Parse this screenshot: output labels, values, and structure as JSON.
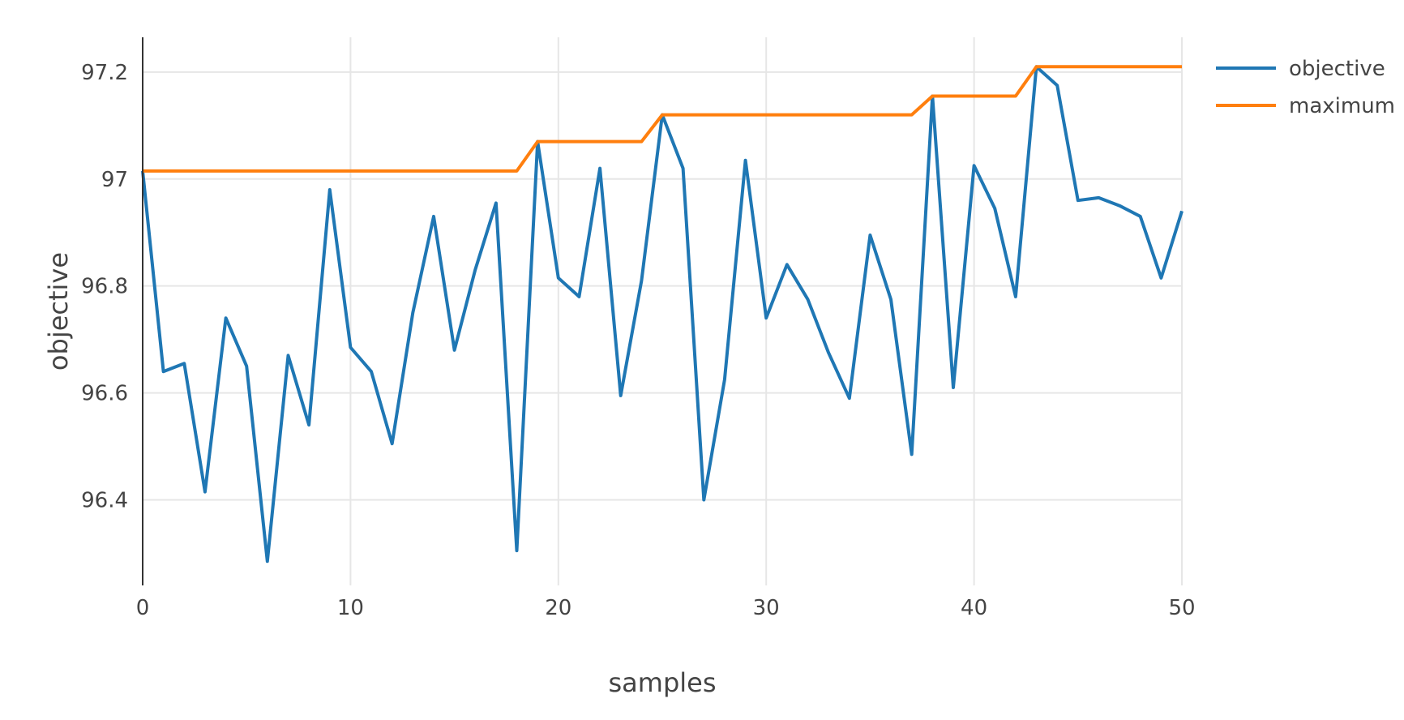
{
  "chart_data": {
    "type": "line",
    "xlabel": "samples",
    "ylabel": "objective",
    "xlim": [
      0,
      50
    ],
    "ylim": [
      96.24,
      97.265
    ],
    "xticks": [
      0,
      10,
      20,
      30,
      40,
      50
    ],
    "xtick_labels": [
      "0",
      "10",
      "20",
      "30",
      "40",
      "50"
    ],
    "yticks": [
      96.4,
      96.6,
      96.8,
      97.0,
      97.2
    ],
    "ytick_labels": [
      "96.4",
      "96.6",
      "96.8",
      "97",
      "97.2"
    ],
    "grid": true,
    "legend_position": "top-right",
    "x": [
      0,
      1,
      2,
      3,
      4,
      5,
      6,
      7,
      8,
      9,
      10,
      11,
      12,
      13,
      14,
      15,
      16,
      17,
      18,
      19,
      20,
      21,
      22,
      23,
      24,
      25,
      26,
      27,
      28,
      29,
      30,
      31,
      32,
      33,
      34,
      35,
      36,
      37,
      38,
      39,
      40,
      41,
      42,
      43,
      44,
      45,
      46,
      47,
      48,
      49,
      50
    ],
    "series": [
      {
        "name": "objective",
        "color": "#1f77b4",
        "values": [
          97.015,
          96.64,
          96.655,
          96.415,
          96.74,
          96.65,
          96.285,
          96.67,
          96.54,
          96.98,
          96.685,
          96.64,
          96.505,
          96.75,
          96.93,
          96.68,
          96.83,
          96.955,
          96.305,
          97.07,
          96.815,
          96.78,
          97.02,
          96.595,
          96.81,
          97.12,
          97.02,
          96.4,
          96.625,
          97.035,
          96.74,
          96.84,
          96.775,
          96.675,
          96.59,
          96.895,
          96.775,
          96.485,
          97.155,
          96.61,
          97.025,
          96.945,
          96.78,
          97.21,
          97.175,
          96.96,
          96.965,
          96.95,
          96.93,
          96.815,
          96.94
        ]
      },
      {
        "name": "maximum",
        "color": "#ff7f0e",
        "values": [
          97.015,
          97.015,
          97.015,
          97.015,
          97.015,
          97.015,
          97.015,
          97.015,
          97.015,
          97.015,
          97.015,
          97.015,
          97.015,
          97.015,
          97.015,
          97.015,
          97.015,
          97.015,
          97.015,
          97.07,
          97.07,
          97.07,
          97.07,
          97.07,
          97.07,
          97.12,
          97.12,
          97.12,
          97.12,
          97.12,
          97.12,
          97.12,
          97.12,
          97.12,
          97.12,
          97.12,
          97.12,
          97.12,
          97.155,
          97.155,
          97.155,
          97.155,
          97.155,
          97.21,
          97.21,
          97.21,
          97.21,
          97.21,
          97.21,
          97.21,
          97.21
        ]
      }
    ]
  }
}
